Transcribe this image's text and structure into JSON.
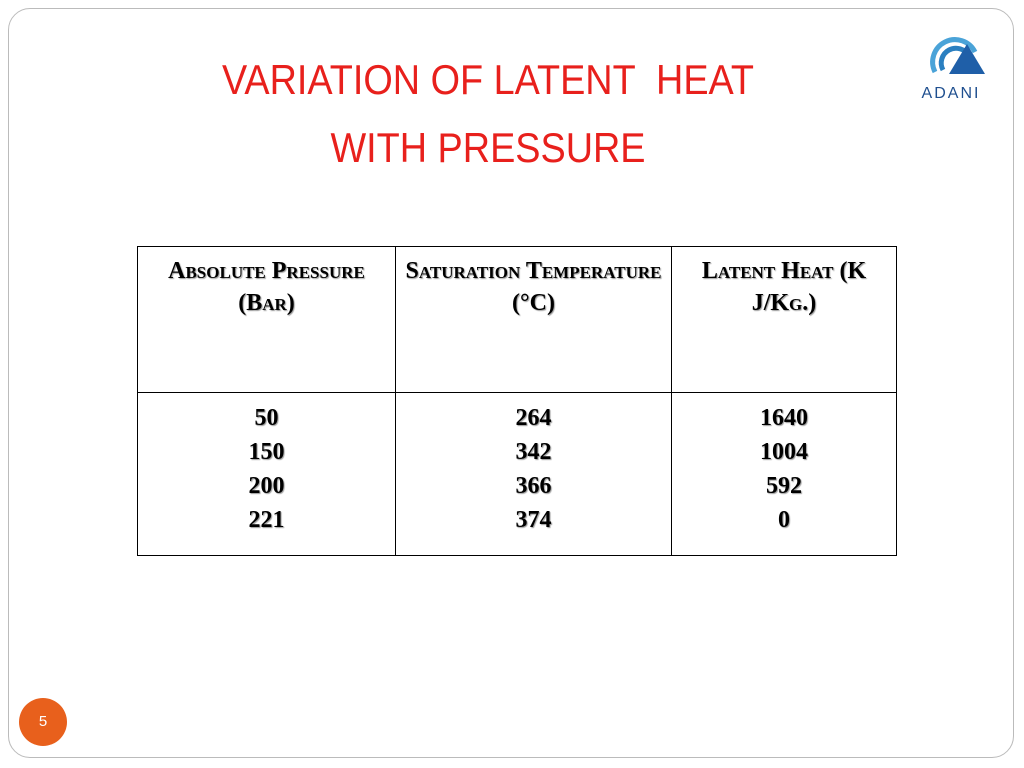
{
  "header": {
    "title_lines": [
      "VARIATION OF LATENT  HEAT",
      "WITH PRESSURE"
    ],
    "logo": "ADANI"
  },
  "table": {
    "columns": [
      {
        "header": "Absolute Pressure (Bar)",
        "values": [
          50,
          150,
          200,
          221
        ]
      },
      {
        "header": "Saturation Temperature (°C)",
        "values": [
          264,
          342,
          366,
          374
        ]
      },
      {
        "header": "Latent Heat (K J/Kg.)",
        "values": [
          1640,
          1004,
          592,
          0
        ]
      }
    ]
  },
  "footer": {
    "slide_number": "5"
  }
}
